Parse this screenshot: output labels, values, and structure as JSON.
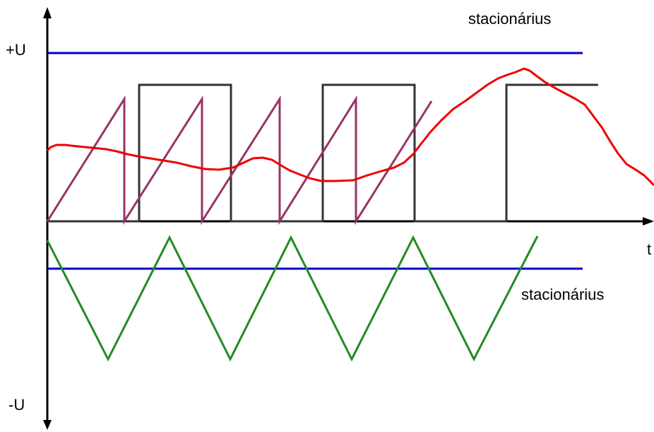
{
  "labels": {
    "plus_u": "+U",
    "minus_u": "-U",
    "t_axis": "t",
    "stationary_top": "stacionárius",
    "stationary_bottom": "stacionárius"
  },
  "colors": {
    "axes": "#000000",
    "dc_level": "#0000cc",
    "square_wave": "#333333",
    "sawtooth_wave": "#993366",
    "noise_signal": "#ee0000",
    "triangle_wave": "#228b22"
  }
}
